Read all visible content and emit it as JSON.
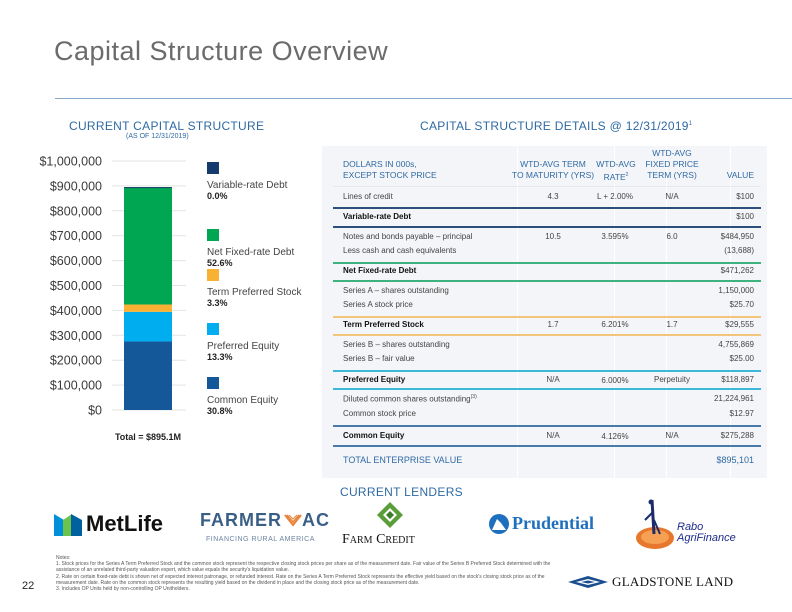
{
  "page": {
    "title": "Capital Structure Overview",
    "page_number": "22"
  },
  "left": {
    "heading": "CURRENT CAPITAL STRUCTURE",
    "subheading": "(AS OF 12/31/2019)"
  },
  "chart_data": {
    "type": "bar",
    "stacked": true,
    "title": "CURRENT CAPITAL STRUCTURE",
    "subtitle": "(AS OF 12/31/2019)",
    "xlabel": "",
    "ylabel": "",
    "ylim": [
      0,
      1000000
    ],
    "yticks": [
      0,
      100000,
      200000,
      300000,
      400000,
      500000,
      600000,
      700000,
      800000,
      900000,
      1000000
    ],
    "ytick_labels": [
      "$0",
      "$100,000",
      "$200,000",
      "$300,000",
      "$400,000",
      "$500,000",
      "$600,000",
      "$700,000",
      "$800,000",
      "$900,000",
      "$1,000,000"
    ],
    "grid": true,
    "legend_position": "right",
    "categories": [
      "Total"
    ],
    "series": [
      {
        "name": "Common Equity",
        "values": [
          275288
        ],
        "percent": "30.8%",
        "color": "#14589a"
      },
      {
        "name": "Preferred Equity",
        "values": [
          118897
        ],
        "percent": "13.3%",
        "color": "#00aeef"
      },
      {
        "name": "Term Preferred Stock",
        "values": [
          29555
        ],
        "percent": "3.3%",
        "color": "#f8b133"
      },
      {
        "name": "Net Fixed-rate Debt",
        "values": [
          471262
        ],
        "percent": "52.6%",
        "color": "#00a651"
      },
      {
        "name": "Variable-rate Debt",
        "values": [
          100
        ],
        "percent": "0.0%",
        "color": "#173a6d"
      }
    ],
    "annotation": "Total = $895.1M"
  },
  "legend_order": [
    4,
    3,
    2,
    1,
    0
  ],
  "details": {
    "heading": "CAPITAL STRUCTURE DETAILS @ 12/31/2019",
    "heading_sup": "1",
    "columns": {
      "c1_line1": "DOLLARS IN 000s,",
      "c1_line2": "EXCEPT STOCK PRICE",
      "c2_line1": "WTD-AVG TERM",
      "c2_line2": "TO MATURITY (YRS)",
      "c3_line1": "WTD-AVG",
      "c3_line2": "RATE",
      "c3_sup": "2",
      "c4_line1": "WTD-AVG",
      "c4_line2": "FIXED PRICE",
      "c4_line3": "TERM (YRS)",
      "c5": "VALUE"
    },
    "rows": {
      "loc": {
        "label": "Lines of credit",
        "term": "4.3",
        "rate": "L + 2.00%",
        "fixed": "N/A",
        "value": "$100"
      },
      "vrd": {
        "label": "Variable-rate Debt",
        "value": "$100"
      },
      "notes": {
        "label": "Notes and bonds payable – principal",
        "term": "10.5",
        "rate": "3.595%",
        "fixed": "6.0",
        "value": "$484,950"
      },
      "cash": {
        "label": "Less cash and cash equivalents",
        "value": "(13,688)"
      },
      "nfrd": {
        "label": "Net Fixed-rate Debt",
        "value": "$471,262"
      },
      "sa_shares": {
        "label": "Series A – shares outstanding",
        "value": "1,150,000"
      },
      "sa_price": {
        "label": "Series A stock price",
        "value": "$25.70"
      },
      "tps": {
        "label": "Term Preferred Stock",
        "term": "1.7",
        "rate": "6.201%",
        "fixed": "1.7",
        "value": "$29,555"
      },
      "sb_shares": {
        "label": "Series B – shares outstanding",
        "value": "4,755,869"
      },
      "sb_fair": {
        "label": "Series B – fair value",
        "value": "$25.00"
      },
      "pe": {
        "label": "Preferred Equity",
        "term": "N/A",
        "rate": "6.000%",
        "fixed": "Perpetuity",
        "value": "$118,897"
      },
      "dil": {
        "label": "Diluted common shares outstanding",
        "sup": "(3)",
        "value": "21,224,961"
      },
      "csp": {
        "label": "Common stock price",
        "value": "$12.97"
      },
      "ce": {
        "label": "Common Equity",
        "term": "N/A",
        "rate": "4.126%",
        "fixed": "N/A",
        "value": "$275,288"
      },
      "tev": {
        "label": "TOTAL ENTERPRISE VALUE",
        "value": "$895,101"
      }
    },
    "line_colors": {
      "variable": "#2c4f7c",
      "fixed": "#3fb37f",
      "term_pref": "#f2c47c",
      "pref": "#3cb8d8",
      "common": "#4a7aa8"
    }
  },
  "lenders": {
    "heading": "CURRENT LENDERS",
    "metlife": "MetLife",
    "farmer_mac_a": "FARMER",
    "farmer_mac_b": "AC",
    "farmer_mac_tag": "FINANCING RURAL AMERICA",
    "farm_credit": "Farm Credit",
    "prudential": "Prudential",
    "rabo_1": "Rabo",
    "rabo_2": "AgriFinance"
  },
  "footer": {
    "notes_title": "Notes:",
    "note1": "1.  Stock prices for the Series A Term Preferred Stock and the common stock represent the respective closing stock prices per share as of the measurement date. Fair value of the Series B Preferred Stock determined with the assistance of an unrelated third-party valuation expert, which value equals the security's liquidation value.",
    "note2": "2. Rate on certain fixed-rate debt is shown net of expected interest patronage, or refunded interest. Rate on the Series A Term Preferred Stock represents the effective yield based on the stock's closing stock price as of the measurement date. Rate on the common stock represents the resulting yield based on the dividend in place and the closing stock price as of the measurement date.",
    "note3": "3. Includes OP Units held by non-controlling OP Unitholders.",
    "brand": "GLADSTONE LAND"
  }
}
